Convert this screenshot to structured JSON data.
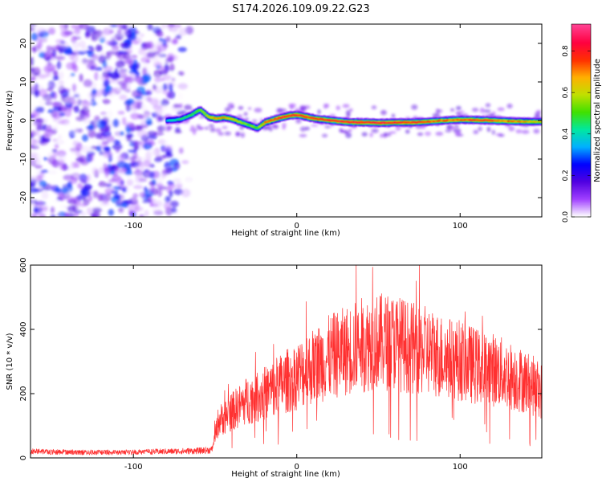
{
  "title": "S174.2026.109.09.22.G23",
  "chart_data": [
    {
      "type": "heatmap",
      "title": "S174.2026.109.09.22.G23",
      "xlabel": "Height of straight line (km)",
      "ylabel": "Frequency (Hz)",
      "xlim": [
        -163,
        150
      ],
      "ylim": [
        -25,
        25
      ],
      "xticks": [
        -100,
        0,
        100
      ],
      "yticks": [
        -20,
        -10,
        0,
        10,
        20
      ],
      "colorbar": {
        "label": "Normalized spectral amplitude",
        "range": [
          0,
          0.93
        ],
        "ticks": [
          0,
          0.2,
          0.4,
          0.6,
          0.8
        ],
        "tick_labels": [
          "0.0",
          "0.2",
          "0.4",
          "0.6",
          "0.8"
        ],
        "colormap": [
          "#ffffff",
          "#a040ff",
          "#5000e0",
          "#0000ff",
          "#00b0ff",
          "#00e8a0",
          "#40e000",
          "#c0e000",
          "#ffb000",
          "#ff3000",
          "#ff0040",
          "#ff4090"
        ]
      },
      "noise_region": {
        "x": [
          -163,
          -65
        ],
        "y": [
          -25,
          25
        ],
        "amplitude": [
          0,
          0.3
        ]
      },
      "ridge": {
        "x": [
          -80,
          -72,
          -65,
          -60,
          -55,
          -50,
          -45,
          -40,
          -35,
          -30,
          -25,
          -20,
          -15,
          -10,
          -5,
          0,
          10,
          20,
          30,
          40,
          50,
          60,
          70,
          80,
          90,
          100,
          110,
          120,
          130,
          140,
          150
        ],
        "frequency": [
          0,
          0.3,
          1.5,
          2.8,
          1,
          0.5,
          0.8,
          0.3,
          -0.5,
          -1.2,
          -2,
          -0.5,
          0.2,
          0.8,
          1.3,
          1.4,
          0.5,
          0,
          -0.4,
          -0.5,
          -0.6,
          -0.5,
          -0.5,
          -0.3,
          0,
          0.2,
          0.1,
          0,
          -0.2,
          -0.3,
          -0.3
        ],
        "peak_amplitude": [
          0.45,
          0.5,
          0.55,
          0.6,
          0.7,
          0.8,
          0.75,
          0.7,
          0.65,
          0.6,
          0.6,
          0.8,
          0.85,
          0.9,
          0.9,
          0.9,
          0.88,
          0.9,
          0.92,
          0.92,
          0.92,
          0.9,
          0.88,
          0.85,
          0.82,
          0.85,
          0.88,
          0.85,
          0.8,
          0.75,
          0.7
        ]
      }
    },
    {
      "type": "line",
      "xlabel": "Height of straight line (km)",
      "ylabel": "SNR (10 * v/v)",
      "xlim": [
        -163,
        150
      ],
      "ylim": [
        0,
        600
      ],
      "xticks": [
        -100,
        0,
        100
      ],
      "yticks": [
        0,
        200,
        400,
        600
      ],
      "color": "#ff3030",
      "series": [
        {
          "name": "SNR",
          "x": [
            -163,
            -140,
            -120,
            -100,
            -80,
            -60,
            -52,
            -48,
            -40,
            -30,
            -20,
            -10,
            0,
            10,
            20,
            30,
            40,
            50,
            60,
            70,
            80,
            90,
            100,
            110,
            120,
            130,
            140,
            150
          ],
          "values": [
            20,
            18,
            17,
            18,
            20,
            22,
            25,
            120,
            150,
            190,
            210,
            240,
            270,
            300,
            330,
            350,
            370,
            380,
            380,
            360,
            350,
            330,
            320,
            300,
            290,
            270,
            250,
            220
          ]
        }
      ]
    }
  ]
}
